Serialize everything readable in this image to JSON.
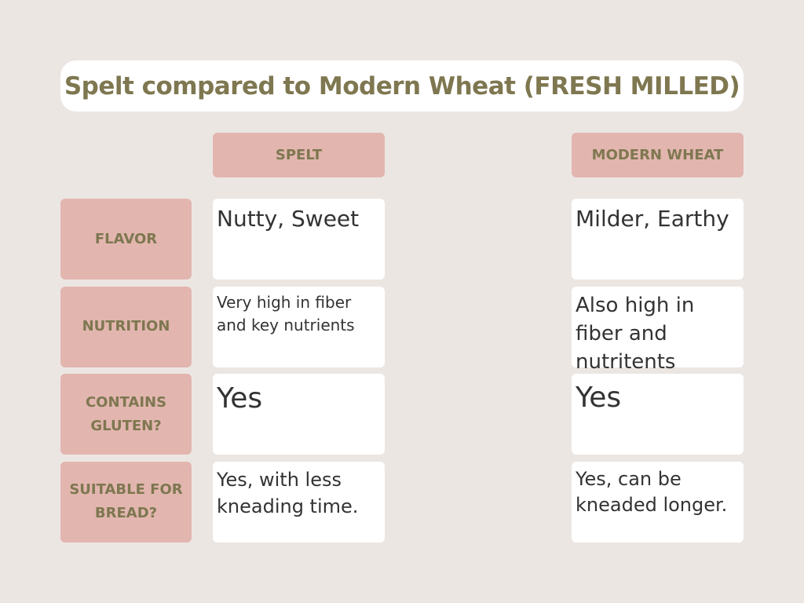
{
  "title": "Spelt compared to Modern Wheat (FRESH MILLED)",
  "table": {
    "columns": [
      "SPELT",
      "MODERN WHEAT"
    ],
    "rows": [
      {
        "label": "FLAVOR",
        "cells": [
          "Nutty, Sweet",
          "Milder, Earthy"
        ]
      },
      {
        "label": "NUTRITION",
        "cells": [
          "Very high in fiber and key nutrients",
          "Also high in fiber and nutritents"
        ]
      },
      {
        "label": "CONTAINS GLUTEN?",
        "cells": [
          "Yes",
          "Yes"
        ]
      },
      {
        "label": "SUITABLE FOR BREAD?",
        "cells": [
          "Yes, with less kneading time.",
          "Yes, can be kneaded longer."
        ]
      }
    ]
  }
}
